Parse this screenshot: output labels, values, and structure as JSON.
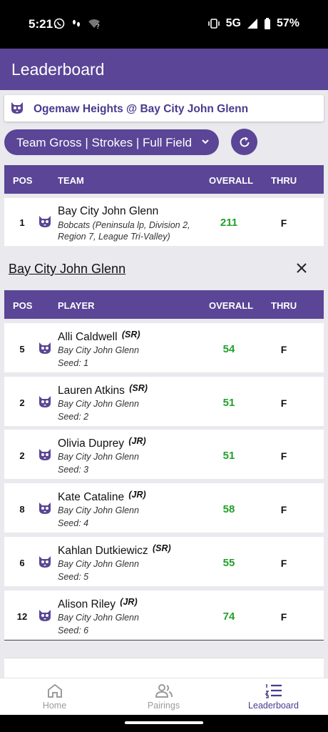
{
  "status_bar": {
    "time": "5:21",
    "network": "5G",
    "battery": "57%"
  },
  "app_bar": {
    "title": "Leaderboard"
  },
  "match": {
    "title": "Ogemaw Heights @ Bay City John Glenn"
  },
  "filter": {
    "label": "Team Gross | Strokes | Full Field"
  },
  "team_table": {
    "headers": {
      "pos": "POS",
      "name": "TEAM",
      "overall": "OVERALL",
      "thru": "THRU"
    },
    "rows": [
      {
        "pos": "1",
        "name": "Bay City John Glenn",
        "detail_1": "Bobcats (Peninsula lp, Division 2,",
        "detail_2": "Region 7, League Tri-Valley)",
        "overall": "211",
        "thru": "F"
      }
    ]
  },
  "team_detail": {
    "title": "Bay City John Glenn"
  },
  "player_table": {
    "headers": {
      "pos": "POS",
      "name": "PLAYER",
      "overall": "OVERALL",
      "thru": "THRU"
    },
    "rows": [
      {
        "pos": "5",
        "name": "Alli Caldwell",
        "year": "(SR)",
        "team": "Bay City John Glenn",
        "seed": "Seed: 1",
        "overall": "54",
        "thru": "F"
      },
      {
        "pos": "2",
        "name": "Lauren Atkins",
        "year": "(SR)",
        "team": "Bay City John Glenn",
        "seed": "Seed: 2",
        "overall": "51",
        "thru": "F"
      },
      {
        "pos": "2",
        "name": "Olivia Duprey",
        "year": "(JR)",
        "team": "Bay City John Glenn",
        "seed": "Seed: 3",
        "overall": "51",
        "thru": "F"
      },
      {
        "pos": "8",
        "name": "Kate Cataline",
        "year": "(JR)",
        "team": "Bay City John Glenn",
        "seed": "Seed: 4",
        "overall": "58",
        "thru": "F"
      },
      {
        "pos": "6",
        "name": "Kahlan Dutkiewicz",
        "year": "(SR)",
        "team": "Bay City John Glenn",
        "seed": "Seed: 5",
        "overall": "55",
        "thru": "F"
      },
      {
        "pos": "12",
        "name": "Alison Riley",
        "year": "(JR)",
        "team": "Bay City John Glenn",
        "seed": "Seed: 6",
        "overall": "74",
        "thru": "F"
      }
    ]
  },
  "bottom_nav": {
    "items": [
      {
        "label": "Home",
        "icon": "home-icon",
        "active": false
      },
      {
        "label": "Pairings",
        "icon": "people-icon",
        "active": false
      },
      {
        "label": "Leaderboard",
        "icon": "list-numbered-icon",
        "active": true
      }
    ]
  },
  "colors": {
    "primary": "#5a4596",
    "score": "#22a02a",
    "background": "#e9e9ee"
  }
}
